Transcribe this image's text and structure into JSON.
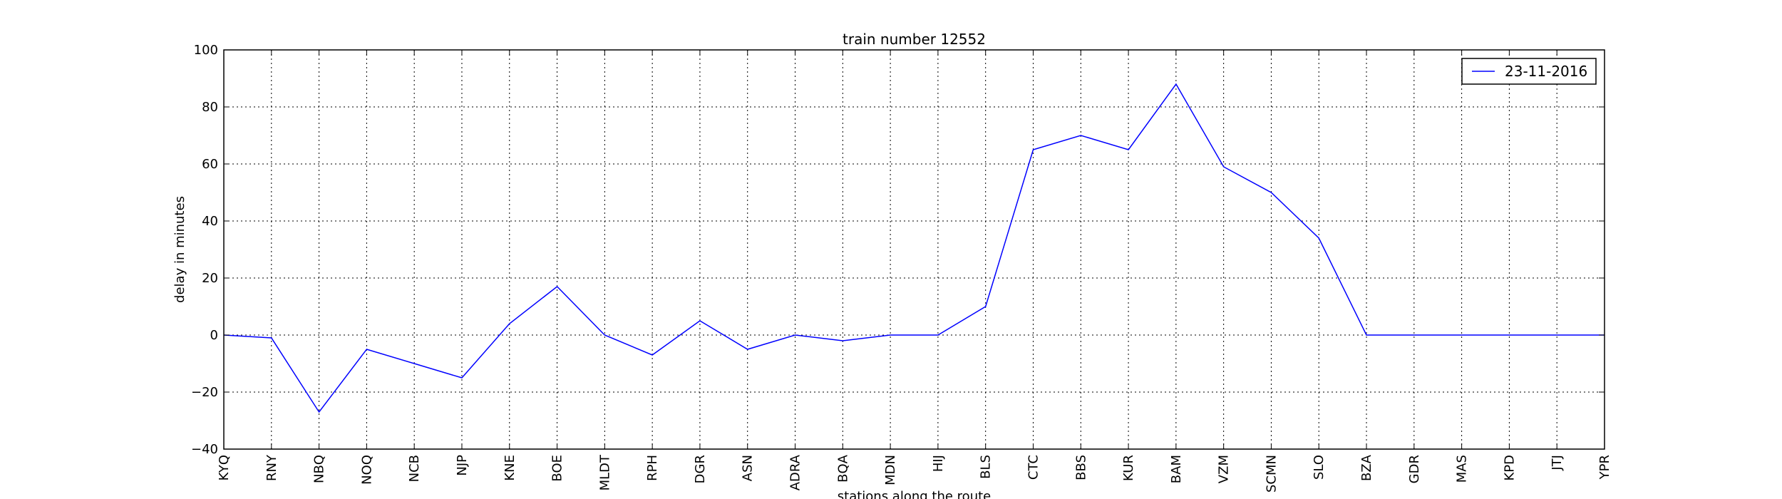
{
  "chart_data": {
    "type": "line",
    "title": "train number 12552",
    "xlabel": "stations along the route",
    "ylabel": "delay in minutes",
    "ylim": [
      -40,
      100
    ],
    "yticks": [
      -40,
      -20,
      0,
      20,
      40,
      60,
      80,
      100
    ],
    "grid": true,
    "legend_position": "top-right",
    "categories": [
      "KYQ",
      "RNY",
      "NBQ",
      "NOQ",
      "NCB",
      "NJP",
      "KNE",
      "BOE",
      "MLDT",
      "RPH",
      "DGR",
      "ASN",
      "ADRA",
      "BQA",
      "MDN",
      "HIJ",
      "BLS",
      "CTC",
      "BBS",
      "KUR",
      "BAM",
      "VZM",
      "SCMN",
      "SLO",
      "BZA",
      "GDR",
      "MAS",
      "KPD",
      "JTJ",
      "YPR"
    ],
    "series": [
      {
        "name": "23-11-2016",
        "color": "#0000ff",
        "values": [
          0,
          -1,
          -27,
          -5,
          -10,
          -15,
          4,
          17,
          0,
          -7,
          5,
          -5,
          0,
          -2,
          0,
          0,
          10,
          65,
          70,
          65,
          88,
          59,
          50,
          34,
          0,
          0,
          0,
          0,
          0,
          0
        ]
      }
    ]
  }
}
